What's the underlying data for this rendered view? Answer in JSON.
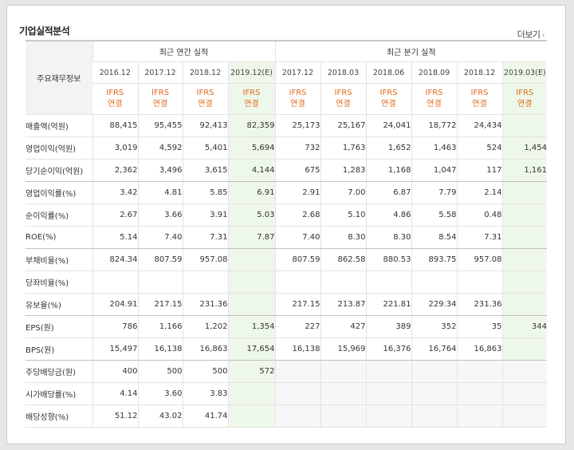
{
  "header": {
    "title": "기업실적분석",
    "more_label": "더보기",
    "more_arrow": "›"
  },
  "table": {
    "row_header": "주요재무정보",
    "group_annual": "최근 연간 실적",
    "group_quarter": "최근 분기 실적",
    "periods": [
      "2016.12",
      "2017.12",
      "2018.12",
      "2019.12(E)",
      "2017.12",
      "2018.03",
      "2018.06",
      "2018.09",
      "2018.12",
      "2019.03(E)"
    ],
    "ifrs_top": "IFRS",
    "ifrs_bottom": "연결",
    "rows": [
      {
        "label": "매출액(억원)",
        "values": [
          "88,415",
          "95,455",
          "92,413",
          "82,359",
          "25,173",
          "25,167",
          "24,041",
          "18,772",
          "24,434",
          ""
        ]
      },
      {
        "label": "영업이익(억원)",
        "values": [
          "3,019",
          "4,592",
          "5,401",
          "5,694",
          "732",
          "1,763",
          "1,652",
          "1,463",
          "524",
          "1,454"
        ]
      },
      {
        "label": "당기순이익(억원)",
        "values": [
          "2,362",
          "3,496",
          "3,615",
          "4,144",
          "675",
          "1,283",
          "1,168",
          "1,047",
          "117",
          "1,161"
        ]
      },
      {
        "label": "영업이익률(%)",
        "values": [
          "3.42",
          "4.81",
          "5.85",
          "6.91",
          "2.91",
          "7.00",
          "6.87",
          "7.79",
          "2.14",
          ""
        ]
      },
      {
        "label": "순이익률(%)",
        "values": [
          "2.67",
          "3.66",
          "3.91",
          "5.03",
          "2.68",
          "5.10",
          "4.86",
          "5.58",
          "0.48",
          ""
        ]
      },
      {
        "label": "ROE(%)",
        "values": [
          "5.14",
          "7.40",
          "7.31",
          "7.87",
          "7.40",
          "8.30",
          "8.30",
          "8.54",
          "7.31",
          ""
        ]
      },
      {
        "label": "부채비율(%)",
        "values": [
          "824.34",
          "807.59",
          "957.08",
          "",
          "807.59",
          "862.58",
          "880.53",
          "893.75",
          "957.08",
          ""
        ]
      },
      {
        "label": "당좌비율(%)",
        "values": [
          "",
          "",
          "",
          "",
          "",
          "",
          "",
          "",
          "",
          ""
        ]
      },
      {
        "label": "유보율(%)",
        "values": [
          "204.91",
          "217.15",
          "231.36",
          "",
          "217.15",
          "213.87",
          "221.81",
          "229.34",
          "231.36",
          ""
        ]
      },
      {
        "label": "EPS(원)",
        "values": [
          "786",
          "1,166",
          "1,202",
          "1,354",
          "227",
          "427",
          "389",
          "352",
          "35",
          "344"
        ]
      },
      {
        "label": "BPS(원)",
        "values": [
          "15,497",
          "16,138",
          "16,863",
          "17,654",
          "16,138",
          "15,969",
          "16,376",
          "16,764",
          "16,863",
          ""
        ]
      },
      {
        "label": "주당배당금(원)",
        "values": [
          "400",
          "500",
          "500",
          "572",
          "",
          "",
          "",
          "",
          "",
          ""
        ]
      },
      {
        "label": "시가배당률(%)",
        "values": [
          "4.14",
          "3.60",
          "3.83",
          "",
          "",
          "",
          "",
          "",
          "",
          ""
        ]
      },
      {
        "label": "배당성향(%)",
        "values": [
          "51.12",
          "43.02",
          "41.74",
          "",
          "",
          "",
          "",
          "",
          "",
          ""
        ]
      }
    ]
  }
}
